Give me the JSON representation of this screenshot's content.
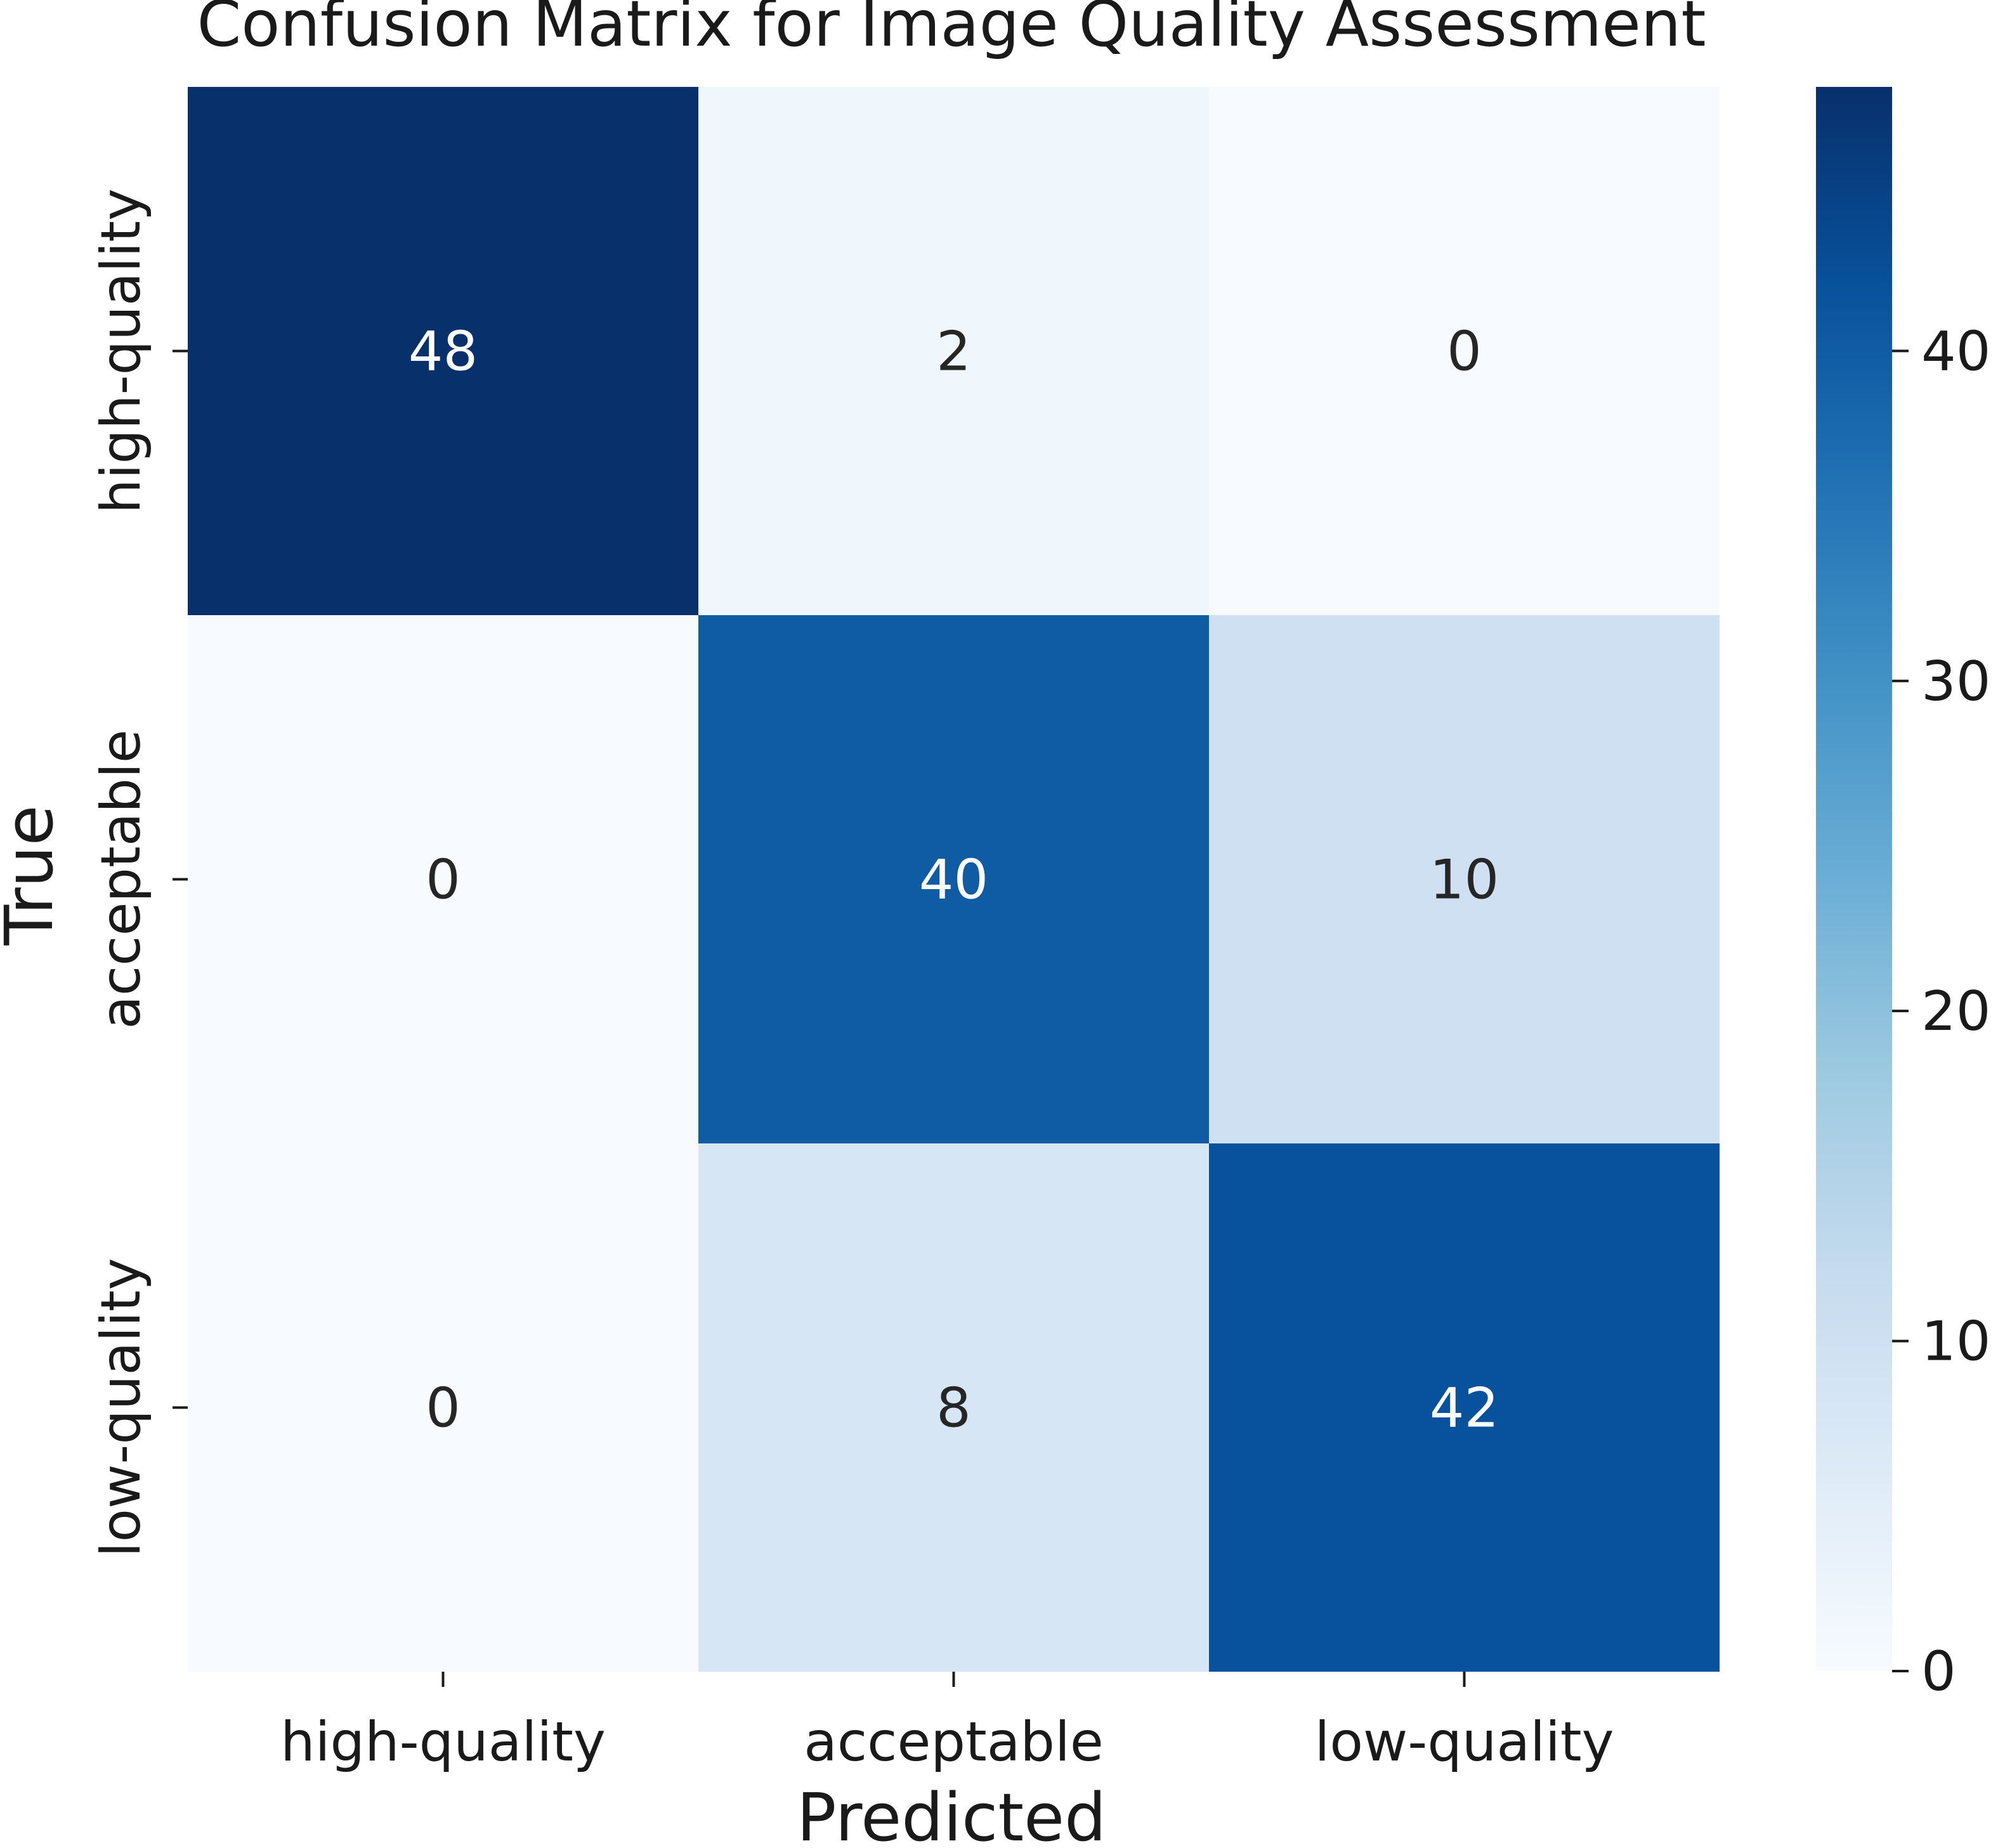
{
  "chart_data": {
    "type": "heatmap",
    "title": "Confusion Matrix for Image Quality Assessment",
    "xlabel": "Predicted",
    "ylabel": "True",
    "x_categories": [
      "high-quality",
      "acceptable",
      "low-quality"
    ],
    "y_categories": [
      "high-quality",
      "acceptable",
      "low-quality"
    ],
    "values": [
      [
        48,
        2,
        0
      ],
      [
        0,
        40,
        10
      ],
      [
        0,
        8,
        42
      ]
    ],
    "colorbar": {
      "range": [
        0,
        48
      ],
      "ticks": [
        0,
        10,
        20,
        30,
        40
      ],
      "tick_labels": [
        "0",
        "10",
        "20",
        "30",
        "40"
      ],
      "colormap": "Blues",
      "color_stops": [
        "#f7fbff",
        "#deebf7",
        "#c6dbef",
        "#9ecae1",
        "#6baed6",
        "#4292c6",
        "#2171b5",
        "#08519c",
        "#08306b"
      ]
    },
    "grid": false,
    "legend": "colorbar-right"
  }
}
